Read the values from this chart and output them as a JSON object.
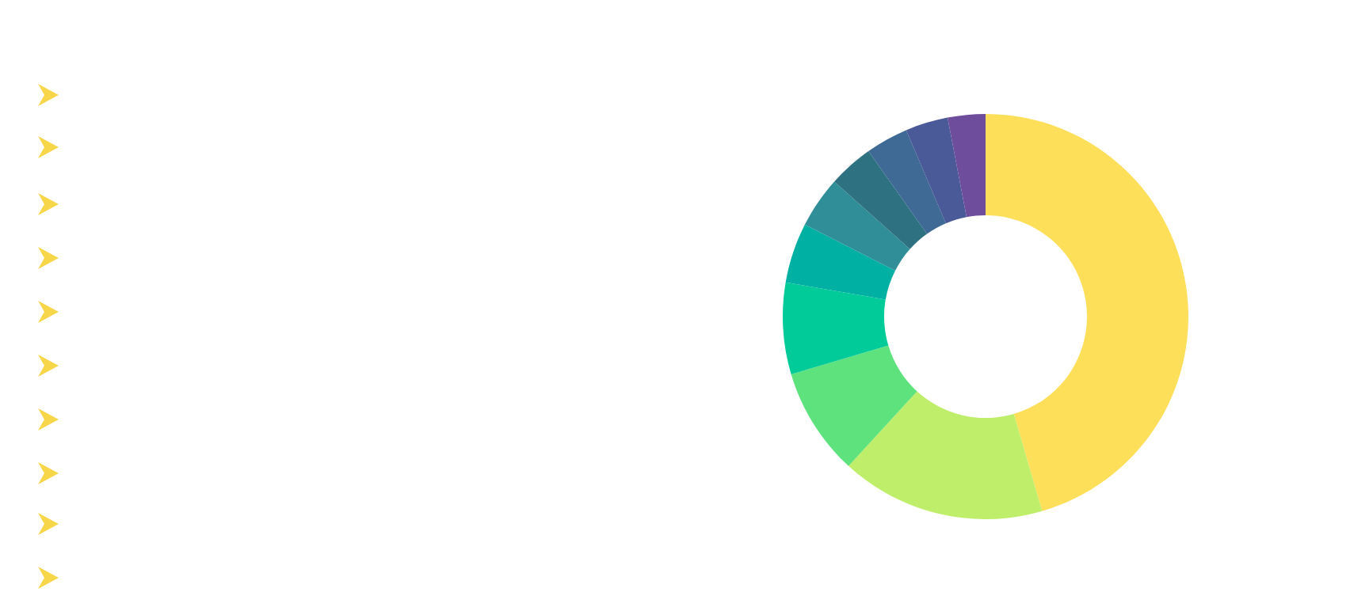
{
  "chart_data": {
    "type": "donut",
    "categories": [
      null,
      null,
      null,
      null,
      null,
      null,
      null,
      null,
      null,
      null
    ],
    "values": [
      45.5,
      16.3,
      8.6,
      7.3,
      4.8,
      4.1,
      3.6,
      3.4,
      3.4,
      3.0
    ],
    "colors": [
      "#fedf5a",
      "#bfee6a",
      "#5de27d",
      "#00cb99",
      "#00b0a2",
      "#2f8e98",
      "#2e7282",
      "#3e6a95",
      "#4a5997",
      "#6e4d9c"
    ]
  }
}
